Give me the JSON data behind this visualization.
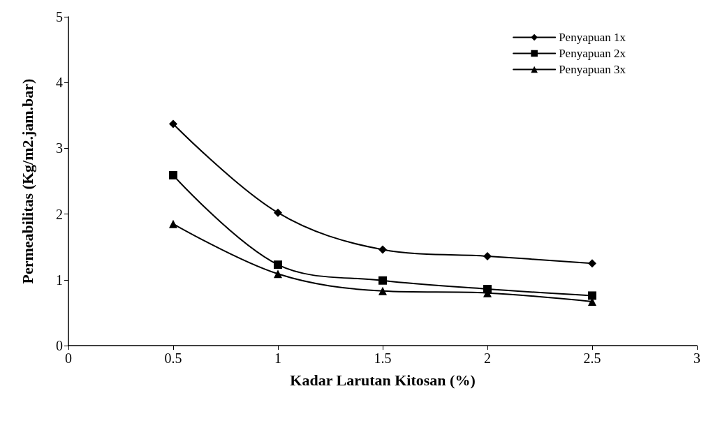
{
  "chart_data": {
    "type": "line",
    "xlabel": "Kadar Larutan Kitosan (%)",
    "ylabel": "Permeabilitas (Kg/m2.jam.bar)",
    "x": [
      0.5,
      1,
      1.5,
      2,
      2.5
    ],
    "series": [
      {
        "name": "Penyapuan 1x",
        "color": "#000000",
        "marker": "diamond",
        "values": [
          3.37,
          2.02,
          1.46,
          1.36,
          1.25
        ]
      },
      {
        "name": "Penyapuan 2x",
        "color": "#000000",
        "marker": "square",
        "values": [
          2.59,
          1.23,
          0.99,
          0.86,
          0.76
        ]
      },
      {
        "name": "Penyapuan 3x",
        "color": "#000000",
        "marker": "triangle",
        "values": [
          1.85,
          1.09,
          0.83,
          0.8,
          0.67
        ]
      }
    ],
    "xlim": [
      0,
      3
    ],
    "xticks": [
      0,
      0.5,
      1,
      1.5,
      2,
      2.5,
      3
    ],
    "ylim": [
      0,
      5
    ],
    "yticks": [
      0,
      1,
      2,
      3,
      4,
      5
    ],
    "grid": false,
    "legend": "top right",
    "line_style": "solid"
  }
}
